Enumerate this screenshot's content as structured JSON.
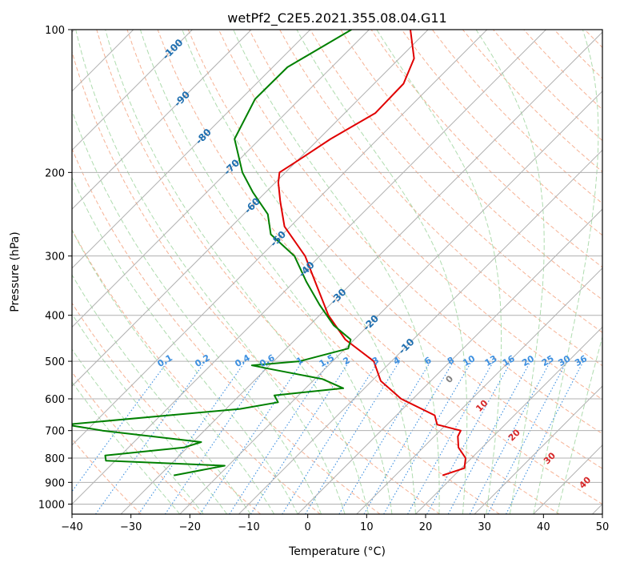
{
  "chart_data": {
    "type": "line",
    "subtype": "skew-t log-p diagram",
    "title": "wetPf2_C2E5.2021.355.08.04.G11",
    "xlabel": "Temperature (°C)",
    "ylabel": "Pressure (hPa)",
    "xlim": [
      -40,
      50
    ],
    "ylim": [
      1050,
      100
    ],
    "y_scale": "log",
    "grid": true,
    "x_ticks": [
      "−40",
      "−30",
      "−20",
      "−10",
      "0",
      "10",
      "20",
      "30",
      "40",
      "50"
    ],
    "y_ticks": [
      "100",
      "200",
      "300",
      "400",
      "500",
      "600",
      "700",
      "800",
      "900",
      "1000"
    ],
    "isotherm_labels": [
      "-100",
      "-90",
      "-80",
      "-70",
      "-60",
      "-50",
      "-40",
      "-30",
      "-20",
      "-10"
    ],
    "mixing_ratio_labels": [
      "0.1",
      "0.2",
      "0.4",
      "0.6",
      "1",
      "1.5",
      "2",
      "3",
      "4",
      "6",
      "8",
      "10",
      "13",
      "16",
      "20",
      "25",
      "30",
      "36"
    ],
    "moist_adiabat_labels": [
      "0",
      "10",
      "20",
      "30",
      "40"
    ],
    "colors": {
      "temperature": "#e00000",
      "dewpoint": "#008000",
      "dry_adiabat": "#f4a582",
      "moist_adiabat": "#a6d8a6",
      "mixing_ratio": "#3c8fe0",
      "isotherm_label": "#1f6fb0",
      "theta_label": "#d62728",
      "grid": "#b0b0b0"
    },
    "series": [
      {
        "key": "temperature",
        "p": [
          100,
          115,
          130,
          150,
          170,
          190,
          200,
          210,
          230,
          260,
          300,
          350,
          400,
          450,
          500,
          550,
          600,
          650,
          680,
          700,
          720,
          760,
          800,
          840,
          870
        ],
        "t": [
          -63,
          -57.5,
          -55,
          -54.8,
          -58,
          -60,
          -61,
          -59.5,
          -56,
          -51,
          -42.5,
          -35,
          -28.5,
          -21.5,
          -13,
          -8.5,
          -2,
          6.5,
          8.5,
          13.5,
          14,
          16,
          19,
          20.5,
          18
        ]
      },
      {
        "key": "dewpoint",
        "p": [
          100,
          120,
          140,
          170,
          200,
          220,
          245,
          270,
          300,
          340,
          380,
          420,
          450,
          470,
          500,
          510,
          520,
          545,
          570,
          590,
          610,
          630,
          680,
          700,
          740,
          760,
          790,
          810,
          830,
          870
        ],
        "t": [
          -73,
          -77.5,
          -77.6,
          -74.3,
          -67.3,
          -62.2,
          -55.9,
          -52,
          -44.3,
          -37.9,
          -31.8,
          -25.9,
          -20.6,
          -19.5,
          -25.6,
          -33,
          -28.9,
          -18.7,
          -13.6,
          -24.1,
          -22.3,
          -27.6,
          -54.5,
          -47.3,
          -28.6,
          -30.6,
          -42.6,
          -41.6,
          -20.6,
          -27.6
        ]
      }
    ]
  }
}
